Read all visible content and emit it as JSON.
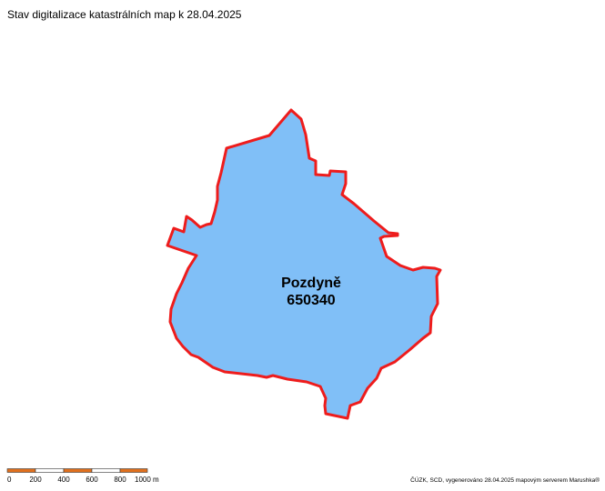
{
  "header": {
    "title": "Stav digitalizace katastrálních map k 28.04.2025"
  },
  "area": {
    "name": "Pozdyně",
    "code": "650340"
  },
  "scale_bar": {
    "labels": [
      "0",
      "200",
      "400",
      "600",
      "800",
      "1000 m"
    ]
  },
  "footer": {
    "credit": "ČÚZK, SCD, vygenerováno 28.04.2025 mapovým serverem Marushka®"
  }
}
